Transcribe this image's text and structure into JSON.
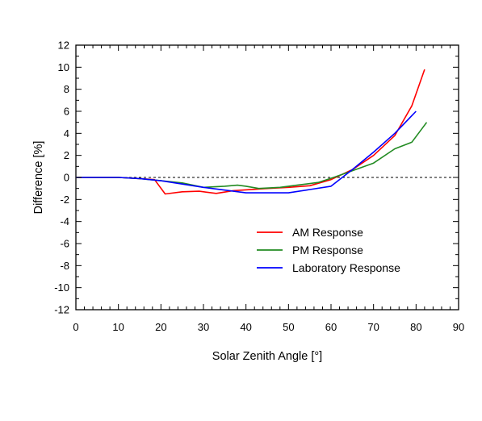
{
  "chart_data": {
    "type": "line",
    "title": "",
    "xlabel": "Solar Zenith Angle [°]",
    "ylabel": "Difference [%]",
    "xlim": [
      0,
      90
    ],
    "ylim": [
      -12,
      12
    ],
    "x_ticks": [
      0,
      10,
      20,
      30,
      40,
      50,
      60,
      70,
      80,
      90
    ],
    "y_ticks": [
      -12,
      -10,
      -8,
      -6,
      -4,
      -2,
      0,
      2,
      4,
      6,
      8,
      10,
      12
    ],
    "grid": false,
    "zero_reference_line": {
      "y": 0,
      "style": "dashed",
      "color": "#000000"
    },
    "legend_placement": "lower-right",
    "series": [
      {
        "name": "AM Response",
        "color": "#ff0000",
        "points": [
          [
            0,
            0
          ],
          [
            10,
            0
          ],
          [
            15,
            -0.1
          ],
          [
            18.5,
            -0.2
          ],
          [
            21,
            -1.5
          ],
          [
            25,
            -1.3
          ],
          [
            29,
            -1.25
          ],
          [
            33,
            -1.45
          ],
          [
            37,
            -1.2
          ],
          [
            45,
            -1.0
          ],
          [
            50,
            -0.9
          ],
          [
            55,
            -0.75
          ],
          [
            60,
            -0.2
          ],
          [
            65,
            0.7
          ],
          [
            70,
            2.0
          ],
          [
            75,
            3.8
          ],
          [
            79,
            6.5
          ],
          [
            82,
            9.8
          ]
        ]
      },
      {
        "name": "PM Response",
        "color": "#228b22",
        "points": [
          [
            0,
            0
          ],
          [
            10,
            0
          ],
          [
            15,
            -0.1
          ],
          [
            20,
            -0.3
          ],
          [
            25,
            -0.5
          ],
          [
            30,
            -0.9
          ],
          [
            35,
            -0.8
          ],
          [
            38,
            -0.7
          ],
          [
            40,
            -0.8
          ],
          [
            43,
            -1.0
          ],
          [
            48,
            -0.9
          ],
          [
            52,
            -0.7
          ],
          [
            57,
            -0.45
          ],
          [
            61,
            0.05
          ],
          [
            65,
            0.6
          ],
          [
            70,
            1.3
          ],
          [
            75,
            2.6
          ],
          [
            79,
            3.2
          ],
          [
            82.5,
            5.0
          ]
        ]
      },
      {
        "name": "Laboratory Response",
        "color": "#0000ff",
        "points": [
          [
            0,
            0
          ],
          [
            10,
            0
          ],
          [
            15,
            -0.1
          ],
          [
            20,
            -0.3
          ],
          [
            25,
            -0.6
          ],
          [
            30,
            -0.9
          ],
          [
            35,
            -1.15
          ],
          [
            40,
            -1.4
          ],
          [
            45,
            -1.4
          ],
          [
            50,
            -1.4
          ],
          [
            55,
            -1.1
          ],
          [
            60,
            -0.8
          ],
          [
            65,
            0.7
          ],
          [
            70,
            2.3
          ],
          [
            75,
            4.0
          ],
          [
            80,
            6.0
          ]
        ]
      }
    ]
  }
}
